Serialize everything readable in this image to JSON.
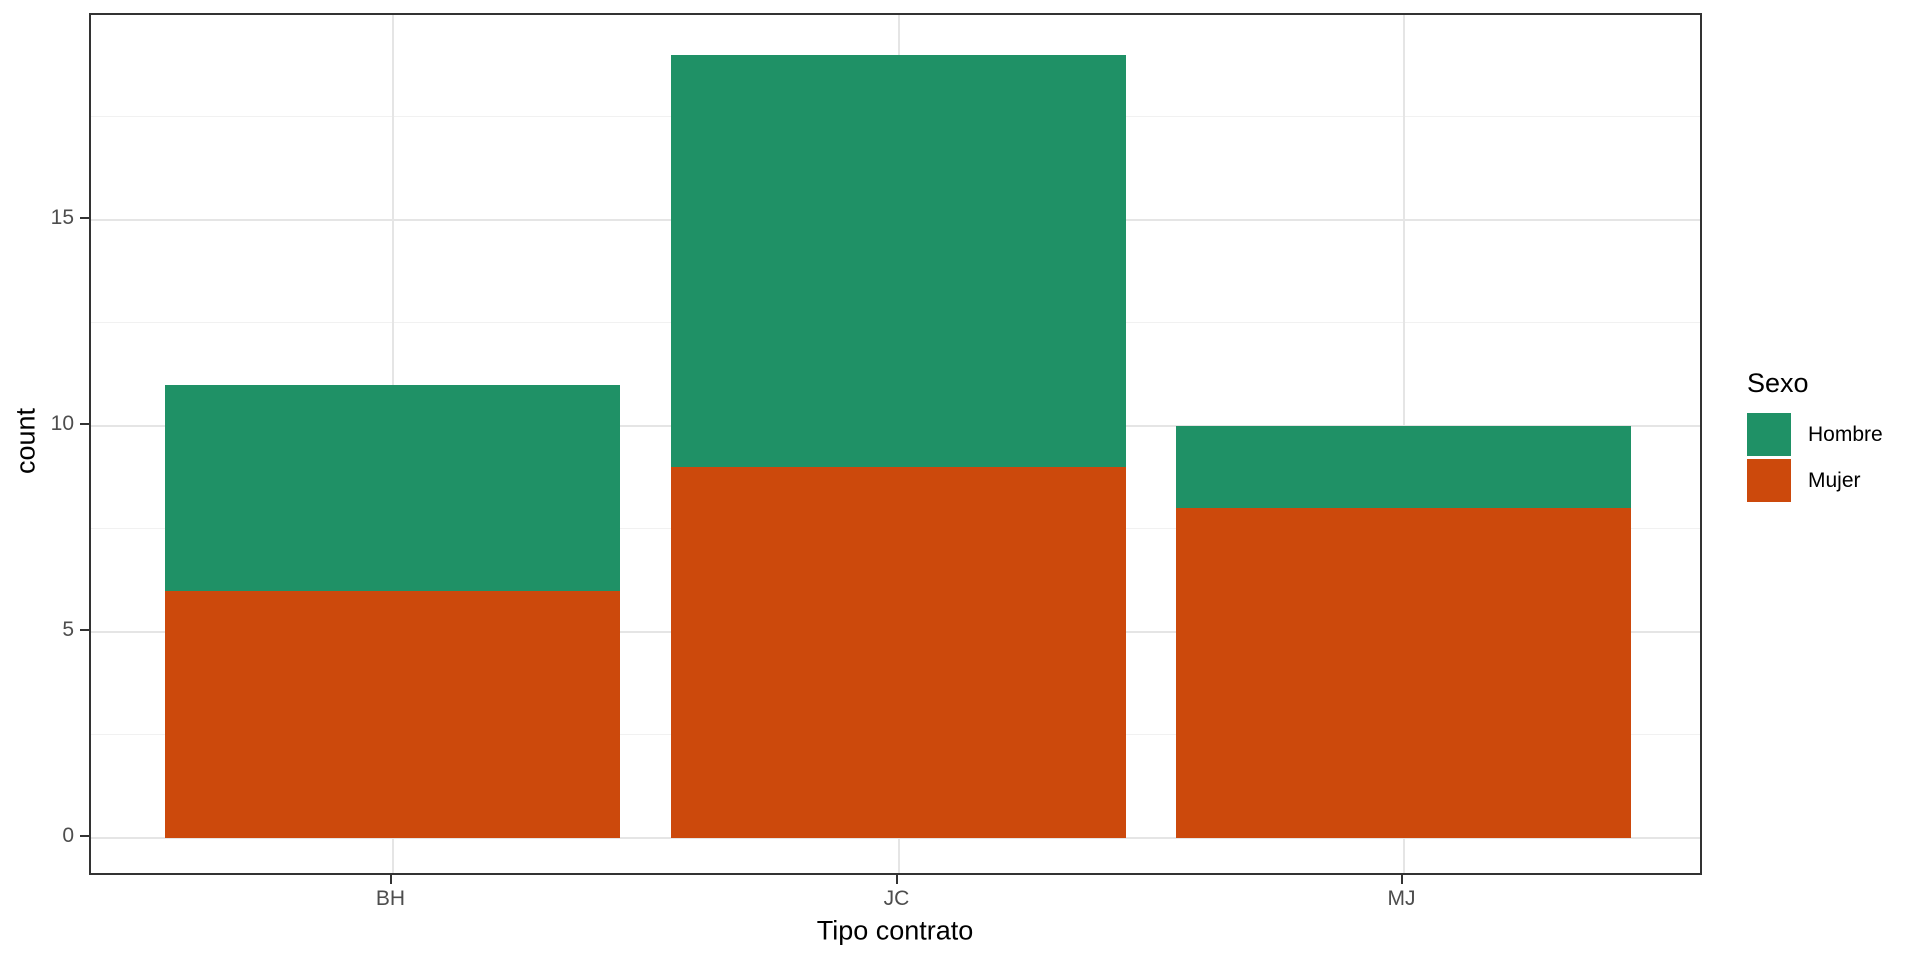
{
  "chart_data": {
    "type": "bar",
    "stacked": true,
    "title": "",
    "categories": [
      "BH",
      "JC",
      "MJ"
    ],
    "series": [
      {
        "name": "Hombre",
        "color": "#1F9166",
        "values": [
          5,
          10,
          2
        ]
      },
      {
        "name": "Mujer",
        "color": "#CC490C",
        "values": [
          6,
          9,
          8
        ]
      }
    ],
    "stack_order_bottom_to_top": [
      "Mujer",
      "Hombre"
    ],
    "totals": [
      11,
      19,
      10
    ],
    "xlabel": "Tipo contrato",
    "ylabel": "count",
    "y_ticks": [
      0,
      5,
      10,
      15
    ],
    "y_minor_ticks": [
      2.5,
      7.5,
      12.5,
      17.5
    ],
    "ylim": [
      -0.95,
      19.95
    ],
    "grid": true,
    "legend": {
      "title": "Sexo",
      "position": "right",
      "entries": [
        "Hombre",
        "Mujer"
      ]
    },
    "theme": {
      "panel_border_color": "#333333",
      "grid_major_color": "#e5e5e5",
      "grid_minor_color": "#f1f1f1",
      "tick_color": "#333333",
      "tick_label_color": "#4d4d4d",
      "title_color": "#000000",
      "background": "#ffffff"
    }
  }
}
